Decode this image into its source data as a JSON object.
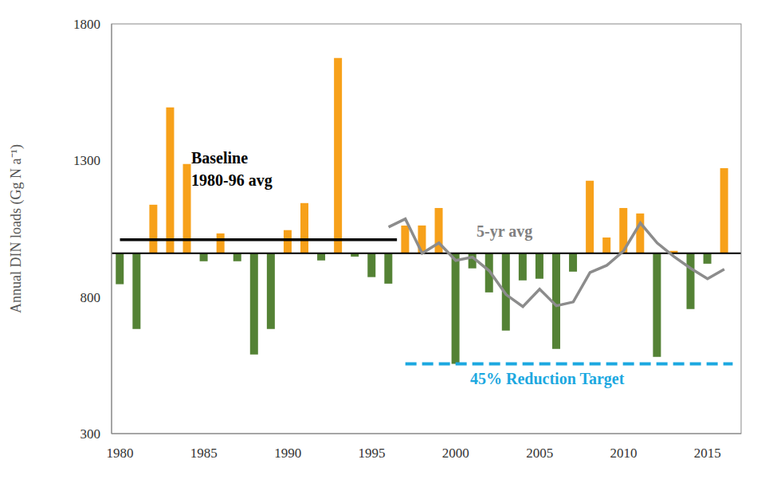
{
  "chart_data": {
    "type": "bar",
    "y_label": "Annual DIN loads (Gg N a⁻¹)",
    "xlim": [
      1979.5,
      2017
    ],
    "xticks": [
      1980,
      1985,
      1990,
      1995,
      2000,
      2005,
      2010,
      2015
    ],
    "ylim": [
      300,
      1800
    ],
    "yticks": [
      300,
      800,
      1300,
      1800
    ],
    "grid": false,
    "bar_base": 960,
    "series": [
      {
        "type": "bar",
        "x": [
          1980,
          1981,
          1982,
          1983,
          1984,
          1985,
          1986,
          1987,
          1988,
          1989,
          1990,
          1991,
          1992,
          1993,
          1994,
          1995,
          1996,
          1997,
          1998,
          1999,
          2000,
          2001,
          2002,
          2003,
          2004,
          2005,
          2006,
          2007,
          2008,
          2009,
          2010,
          2011,
          2012,
          2013,
          2014,
          2015,
          2016
        ],
        "values": [
          847,
          683,
          1138,
          1494,
          1287,
          931,
          1033,
          931,
          590,
          683,
          1045,
          1144,
          934,
          1675,
          948,
          873,
          849,
          1062,
          1062,
          1126,
          555,
          905,
          817,
          677,
          861,
          867,
          610,
          893,
          1226,
          1018,
          1126,
          1106,
          581,
          969,
          756,
          922,
          1272
        ],
        "colors": [
          "#548235",
          "#548235",
          "#f7a11a",
          "#f7a11a",
          "#f7a11a",
          "#548235",
          "#f7a11a",
          "#548235",
          "#548235",
          "#548235",
          "#f7a11a",
          "#f7a11a",
          "#548235",
          "#f7a11a",
          "#548235",
          "#548235",
          "#548235",
          "#f7a11a",
          "#f7a11a",
          "#f7a11a",
          "#548235",
          "#548235",
          "#548235",
          "#548235",
          "#548235",
          "#548235",
          "#548235",
          "#548235",
          "#f7a11a",
          "#f7a11a",
          "#f7a11a",
          "#f7a11a",
          "#548235",
          "#f7a11a",
          "#548235",
          "#548235",
          "#f7a11a"
        ]
      },
      {
        "name": "Baseline 1980-96 avg",
        "type": "line",
        "x": [
          1980,
          1996.5
        ],
        "values": [
          1010,
          1010
        ],
        "color": "#000000",
        "line_style": "solid"
      },
      {
        "name": "5-yr avg",
        "type": "line",
        "x": [
          1996,
          1997,
          1998,
          1999,
          2000,
          2001,
          2002,
          2003,
          2004,
          2005,
          2006,
          2007,
          2008,
          2009,
          2010,
          2011,
          2012,
          2013,
          2014,
          2015,
          2016
        ],
        "values": [
          1056,
          1086,
          960,
          998,
          934,
          946,
          896,
          809,
          765,
          829,
          768,
          782,
          890,
          916,
          969,
          1071,
          998,
          948,
          905,
          867,
          902
        ],
        "color": "#8c8c8c",
        "line_style": "solid"
      },
      {
        "name": "45% Reduction Target",
        "type": "line",
        "x": [
          1997,
          2016.5
        ],
        "values": [
          555,
          555
        ],
        "color": "#1ca8e0",
        "line_style": "dashed"
      }
    ]
  }
}
